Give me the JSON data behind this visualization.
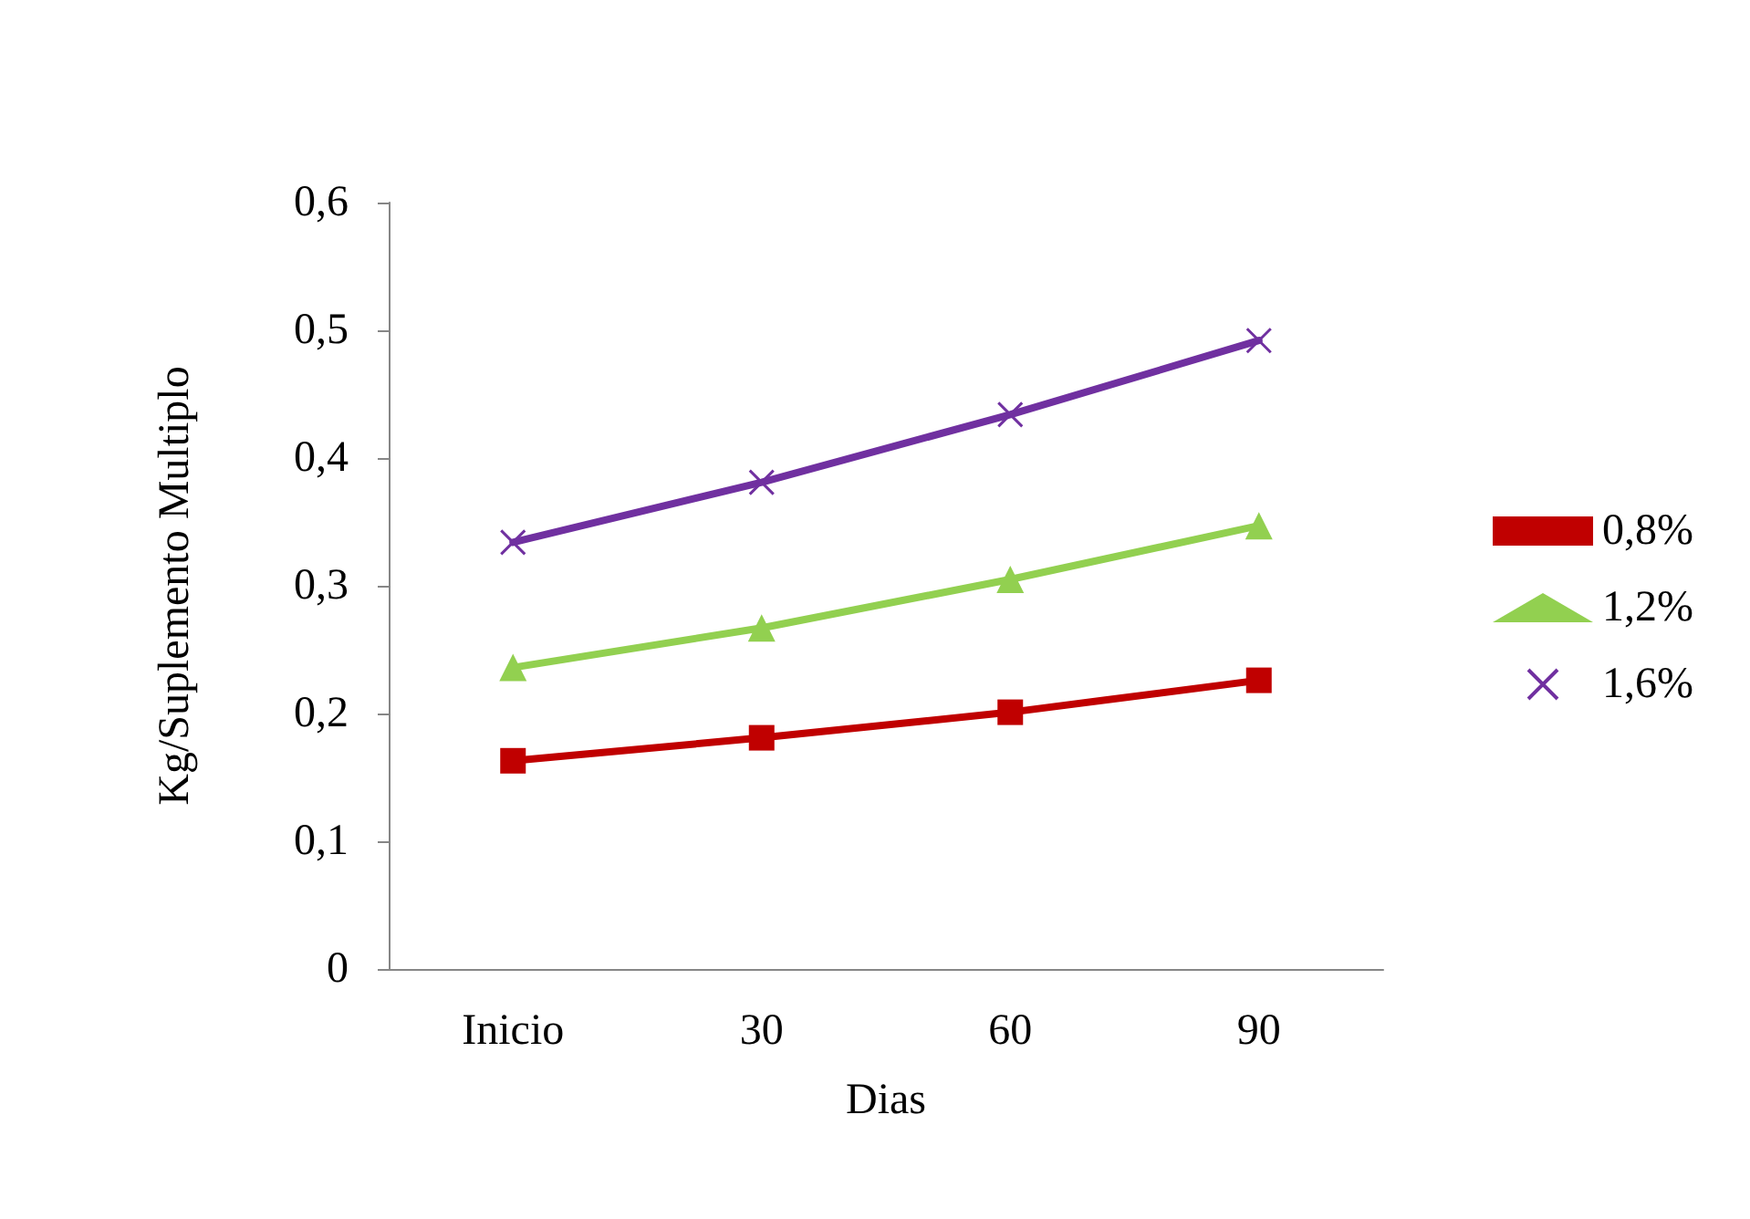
{
  "chart_data": {
    "type": "line",
    "xlabel": "Dias",
    "ylabel": "Kg/Suplemento Multiplo",
    "categories": [
      "Inicio",
      "30",
      "60",
      "90"
    ],
    "ylim": [
      0,
      0.6
    ],
    "yticks": [
      {
        "value": 0,
        "label": "0"
      },
      {
        "value": 0.1,
        "label": "0,1"
      },
      {
        "value": 0.2,
        "label": "0,2"
      },
      {
        "value": 0.3,
        "label": "0,3"
      },
      {
        "value": 0.4,
        "label": "0,4"
      },
      {
        "value": 0.5,
        "label": "0,5"
      },
      {
        "value": 0.6,
        "label": "0,6"
      }
    ],
    "grid": false,
    "legend": "right",
    "series": [
      {
        "name": "0,8%",
        "color": "#c00000",
        "marker": "square",
        "values": [
          0.163,
          0.181,
          0.201,
          0.226
        ]
      },
      {
        "name": "1,2%",
        "color": "#92d050",
        "marker": "triangle",
        "values": [
          0.236,
          0.267,
          0.305,
          0.347
        ]
      },
      {
        "name": "1,6%",
        "color": "#7030a0",
        "marker": "cross",
        "values": [
          0.334,
          0.381,
          0.434,
          0.492
        ]
      }
    ]
  }
}
